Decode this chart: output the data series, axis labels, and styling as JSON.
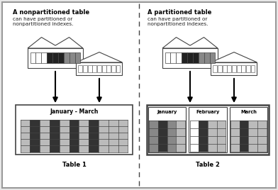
{
  "bg_color": "#e8e8e8",
  "border_color": "#999999",
  "title_left": "A nonpartitioned table",
  "subtitle_left": "can have partitioned or\nnonpartitioned indexes.",
  "title_right": "A partitioned table",
  "subtitle_right": "can have partitioned or\nnonpartitioned indexes.",
  "table1_label": "Table 1",
  "table2_label": "Table 2",
  "jan_march_label": "January - March",
  "jan_label": "January",
  "feb_label": "February",
  "mar_label": "March",
  "dark_gray": "#444444",
  "mid_gray": "#888888",
  "light_gray": "#bbbbbb",
  "box_dark": "#333333",
  "white": "#ffffff",
  "black": "#000000",
  "text_color": "#222222"
}
